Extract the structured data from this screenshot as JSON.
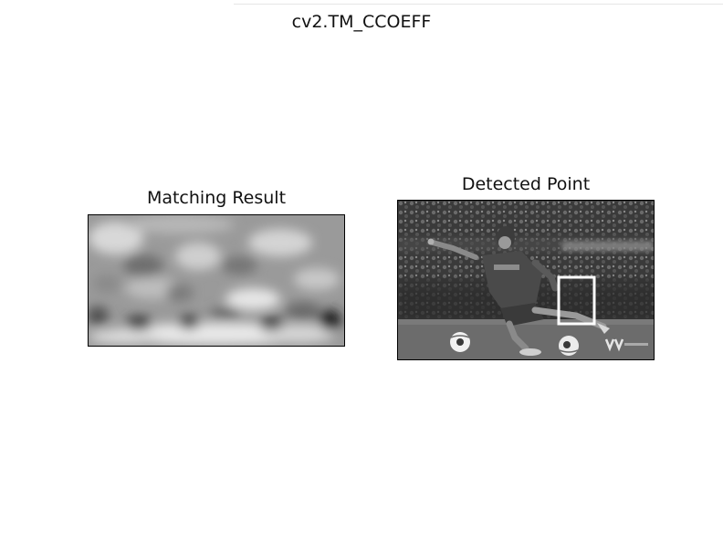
{
  "figure": {
    "suptitle": "cv2.TM_CCOEFF"
  },
  "panels": [
    {
      "title": "Matching Result",
      "image": "grayscale correlation heatmap"
    },
    {
      "title": "Detected Point",
      "image": "grayscale photo of a footballer kicking a ball",
      "marker": "white-rectangle-box"
    }
  ],
  "colors": {
    "background": "#ffffff",
    "frame": "#000000",
    "box": "#ffffff"
  }
}
